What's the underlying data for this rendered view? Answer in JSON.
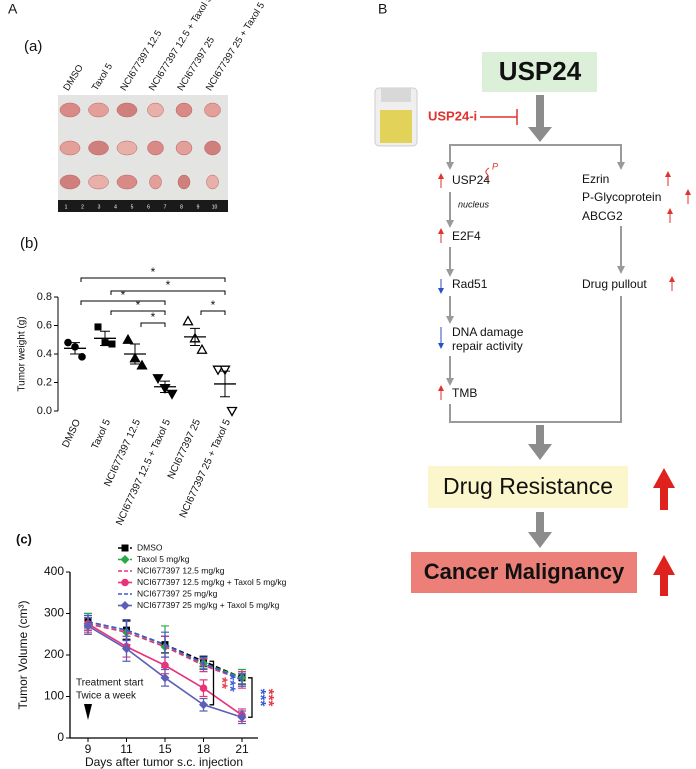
{
  "panels": [
    "A",
    "B"
  ],
  "subpanels": [
    "(a)",
    "(b)",
    "(c)"
  ],
  "photo": {
    "columns": [
      "DMSO",
      "Taxol 5",
      "NCI677397 12.5",
      "NCI677397 12.5 + Taxol 5",
      "NCI677397 25",
      "NCI677397 25 + Taxol 5"
    ],
    "ruler": [
      1,
      2,
      3,
      4,
      5,
      6,
      7,
      8,
      9,
      10
    ]
  },
  "chart_data": [
    {
      "type": "dotplot",
      "ylabel": "Tumor weight (g)",
      "categories": [
        "DMSO",
        "Taxol 5",
        "NCI677397 12.5",
        "NCI677397 12.5 + Taxol 5",
        "NCI677397 25",
        "NCI677397 25 + Taxol 5"
      ],
      "points": [
        [
          0.48,
          0.45,
          0.38
        ],
        [
          0.59,
          0.48,
          0.47
        ],
        [
          0.5,
          0.37,
          0.32
        ],
        [
          0.23,
          0.16,
          0.12
        ],
        [
          0.63,
          0.51,
          0.43
        ],
        [
          0.29,
          0.29,
          0.0
        ]
      ],
      "means": [
        0.44,
        0.51,
        0.4,
        0.17,
        0.52,
        0.19
      ],
      "sems": [
        0.04,
        0.05,
        0.07,
        0.04,
        0.06,
        0.09
      ],
      "markers": [
        "circle",
        "square",
        "triangle",
        "triangle-down",
        "triangle-open",
        "triangle-down-open"
      ],
      "color": "#000000",
      "ylim": [
        0,
        0.8
      ],
      "yticks": [
        {
          "value": 0,
          "label": "0.0"
        },
        0.2,
        0.4,
        0.6,
        0.8
      ],
      "brackets": [
        {
          "between": [
            "DMSO",
            "NCI677397 25 + Taxol 5"
          ],
          "label": "*"
        },
        {
          "between": [
            "Taxol 5",
            "NCI677397 25 + Taxol 5"
          ],
          "label": "*"
        },
        {
          "between": [
            "DMSO",
            "NCI677397 12.5 + Taxol 5"
          ],
          "label": "*"
        },
        {
          "between": [
            "Taxol 5",
            "NCI677397 12.5 + Taxol 5"
          ],
          "label": "*"
        },
        {
          "between": [
            "NCI677397 12.5",
            "NCI677397 12.5 + Taxol 5"
          ],
          "label": "*"
        },
        {
          "between": [
            "NCI677397 25",
            "NCI677397 25 + Taxol 5"
          ],
          "label": "*"
        }
      ]
    },
    {
      "type": "line",
      "xlabel": "Days after tumor s.c. injection",
      "ylabel": "Tumor Volume (cm³)",
      "categories": [
        "9",
        "11",
        "15",
        "18",
        "21"
      ],
      "ylim": [
        0,
        400
      ],
      "yticks": [
        0,
        100,
        200,
        300,
        400
      ],
      "legend": "top-left",
      "series": [
        {
          "name": "DMSO",
          "color": "#000000",
          "dash": true,
          "marker": "square",
          "values": [
            280,
            260,
            225,
            185,
            145
          ],
          "errors": [
            20,
            22,
            20,
            12,
            15
          ]
        },
        {
          "name": "Taxol 5 mg/kg",
          "color": "#2aa845",
          "dash": true,
          "marker": "diamond",
          "values": [
            275,
            255,
            220,
            180,
            145
          ],
          "errors": [
            25,
            30,
            50,
            12,
            20
          ]
        },
        {
          "name": "NCI677397 12.5 mg/kg",
          "color": "#e8337a",
          "dash": true,
          "marker": "none",
          "values": [
            275,
            255,
            220,
            175,
            140
          ],
          "errors": [
            15,
            30,
            25,
            15,
            20
          ]
        },
        {
          "name": "NCI677397 12.5 mg/kg + Taxol 5 mg/kg",
          "color": "#e8337a",
          "dash": false,
          "marker": "circle",
          "values": [
            275,
            220,
            175,
            120,
            55
          ],
          "errors": [
            20,
            25,
            20,
            20,
            15
          ]
        },
        {
          "name": "NCI677397 25 mg/kg",
          "color": "#3b5bd6",
          "dash": true,
          "marker": "none",
          "values": [
            280,
            260,
            225,
            180,
            140
          ],
          "errors": [
            15,
            25,
            30,
            15,
            15
          ]
        },
        {
          "name": "NCI677397 25 mg/kg + Taxol 5 mg/kg",
          "color": "#5b5fb8",
          "dash": false,
          "marker": "diamond",
          "values": [
            270,
            215,
            145,
            80,
            50
          ],
          "errors": [
            20,
            30,
            20,
            15,
            15
          ]
        }
      ],
      "annotations": [
        "Treatment start",
        "Twice a week"
      ],
      "significance": [
        {
          "at": "18",
          "text": "**",
          "color": "#e8394a"
        },
        {
          "at": "18",
          "text": "***",
          "color": "#3b5bd6"
        },
        {
          "at": "21",
          "text": "***",
          "color": "#3b5bd6"
        },
        {
          "at": "21",
          "text": "***",
          "color": "#e8394a"
        }
      ]
    }
  ],
  "diagram": {
    "top": "USP24",
    "inhibitor": "USP24-i",
    "phospho": "P",
    "nucleus": "nucleus",
    "left": [
      "USP24",
      "E2F4",
      "Rad51",
      "DNA damage",
      "repair activity",
      "TMB"
    ],
    "right": [
      "Ezrin",
      "P-Glycoprotein",
      "ABCG2",
      "Drug pullout"
    ],
    "resistance": "Drug Resistance",
    "malignancy": "Cancer Malignancy"
  }
}
